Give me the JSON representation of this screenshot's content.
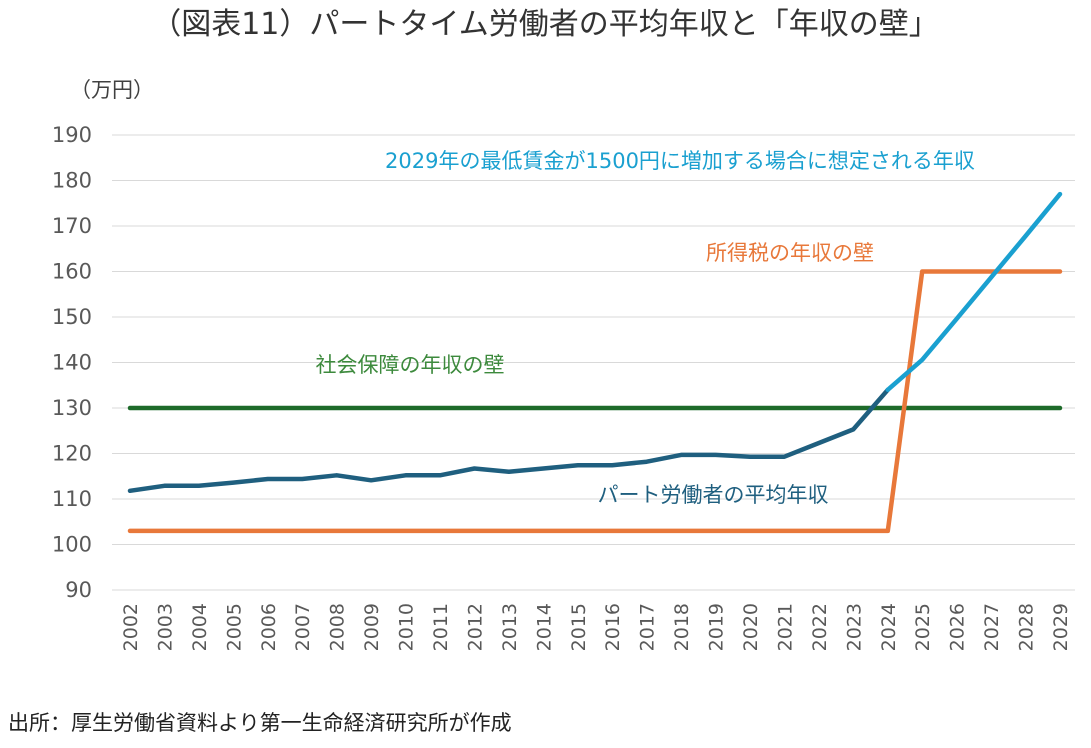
{
  "chart_data": {
    "type": "line",
    "title": "（図表11）パートタイム労働者の平均年収と「年収の壁」",
    "ylabel": "（万円）",
    "ylim": [
      90,
      190
    ],
    "yticks": [
      90,
      100,
      110,
      120,
      130,
      140,
      150,
      160,
      170,
      180,
      190
    ],
    "grid": true,
    "categories": [
      "2002",
      "2003",
      "2004",
      "2005",
      "2006",
      "2007",
      "2008",
      "2009",
      "2010",
      "2011",
      "2012",
      "2013",
      "2014",
      "2015",
      "2016",
      "2017",
      "2018",
      "2019",
      "2020",
      "2021",
      "2022",
      "2023",
      "2024",
      "2025",
      "2026",
      "2027",
      "2028",
      "2029"
    ],
    "series": [
      {
        "name": "パート労働者の平均年収",
        "color": "#1f5f7f",
        "values": [
          111.8,
          112.9,
          112.9,
          113.6,
          114.4,
          114.4,
          115.2,
          114.1,
          115.2,
          115.2,
          116.7,
          116.0,
          116.7,
          117.4,
          117.4,
          118.2,
          119.7,
          119.7,
          119.3,
          119.3,
          122.3,
          125.3,
          134.0,
          null,
          null,
          null,
          null,
          null
        ]
      },
      {
        "name": "2029年の最低賃金が1500円に増加する場合に想定される年収",
        "color": "#1aa0d0",
        "values": [
          null,
          null,
          null,
          null,
          null,
          null,
          null,
          null,
          null,
          null,
          null,
          null,
          null,
          null,
          null,
          null,
          null,
          null,
          null,
          null,
          null,
          null,
          134.0,
          140.6,
          149.6,
          158.7,
          167.8,
          177.0
        ]
      },
      {
        "name": "所得税の年収の壁",
        "color": "#e8783a",
        "values": [
          103,
          103,
          103,
          103,
          103,
          103,
          103,
          103,
          103,
          103,
          103,
          103,
          103,
          103,
          103,
          103,
          103,
          103,
          103,
          103,
          103,
          103,
          103,
          160,
          160,
          160,
          160,
          160
        ]
      },
      {
        "name": "社会保障の年収の壁",
        "color": "#1e6b2a",
        "values": [
          130,
          130,
          130,
          130,
          130,
          130,
          130,
          130,
          130,
          130,
          130,
          130,
          130,
          130,
          130,
          130,
          130,
          130,
          130,
          130,
          130,
          130,
          130,
          130,
          130,
          130,
          130,
          130
        ]
      }
    ],
    "annotations": [
      {
        "text": "2029年の最低賃金が1500円に増加する場合に想定される年収",
        "series": 1,
        "color": "#1aa0d0"
      },
      {
        "text": "所得税の年収の壁",
        "series": 2,
        "color": "#e8783a"
      },
      {
        "text": "社会保障の年収の壁",
        "series": 3,
        "color": "#3d8a3d"
      },
      {
        "text": "パート労働者の平均年収",
        "series": 0,
        "color": "#1f5f7f"
      }
    ],
    "source": "出所：厚生労働省資料より第一生命経済研究所が作成"
  }
}
